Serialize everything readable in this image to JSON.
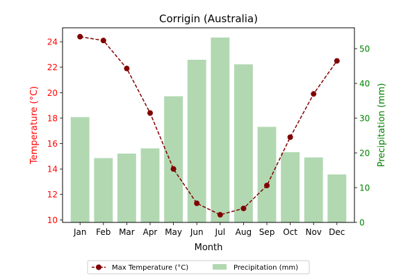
{
  "chart_data": {
    "type": "bar",
    "title": "Corrigin (Australia)",
    "xlabel": "Month",
    "ylabel_left": "Temperature (°C)",
    "ylabel_right": "Precipitation (mm)",
    "categories": [
      "Jan",
      "Feb",
      "Mar",
      "Apr",
      "May",
      "Jun",
      "Jul",
      "Aug",
      "Sep",
      "Oct",
      "Nov",
      "Dec"
    ],
    "left_axis": {
      "ylim": [
        9.8,
        25.1
      ],
      "ticks": [
        10,
        12,
        14,
        16,
        18,
        20,
        22,
        24
      ],
      "tick_labels": [
        "10",
        "12",
        "14",
        "16",
        "18",
        "20",
        "22",
        "24"
      ],
      "color": "#ff0000"
    },
    "right_axis": {
      "ylim": [
        0,
        56
      ],
      "ticks": [
        0,
        10,
        20,
        30,
        40,
        50
      ],
      "tick_labels": [
        "0",
        "10",
        "20",
        "30",
        "40",
        "50"
      ],
      "color": "#008000"
    },
    "series": [
      {
        "name": "Max Temperature (°C)",
        "kind": "line",
        "axis": "left",
        "color": "#800000",
        "values": [
          24.4,
          24.1,
          21.9,
          18.4,
          14.0,
          11.3,
          10.4,
          10.9,
          12.7,
          16.5,
          19.9,
          22.5
        ]
      },
      {
        "name": "Precipitation (mm)",
        "kind": "bar",
        "axis": "right",
        "color": "#b2d8b2",
        "values": [
          30.3,
          18.5,
          19.8,
          21.3,
          36.3,
          46.8,
          53.2,
          45.5,
          27.5,
          20.2,
          18.7,
          13.8
        ]
      }
    ],
    "grid": false,
    "legend_placement": "bottom-center"
  }
}
